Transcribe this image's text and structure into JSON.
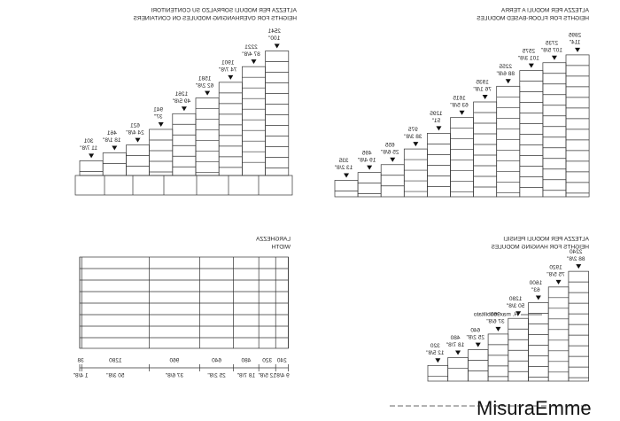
{
  "overhanging": {
    "title": "ALTEZZA PER MODULI SOPRALZO SU CONTENITORI",
    "subtitle": "HEIGHTS FOR OVERHANGING MODULES ON CONTAINERS",
    "modules": [
      {
        "mm": 301,
        "inch": "11 7/8\""
      },
      {
        "mm": 461,
        "inch": "18 1/8\""
      },
      {
        "mm": 621,
        "inch": "24 4/8\""
      },
      {
        "mm": 941,
        "inch": "37\""
      },
      {
        "mm": 1261,
        "inch": "49 5/8\""
      },
      {
        "mm": 1581,
        "inch": "62 2/8\""
      },
      {
        "mm": 1901,
        "inch": "74 7/8\""
      },
      {
        "mm": 2221,
        "inch": "87 4/8\""
      },
      {
        "mm": 2541,
        "inch": "100\""
      }
    ]
  },
  "floor": {
    "title": "ALTEZZA PER MODULI A TERRA",
    "subtitle": "HEIGHTS FOR FLOOR-BASED MODULES",
    "modules": [
      {
        "mm": 335,
        "inch": "13 2/8\""
      },
      {
        "mm": 495,
        "inch": "19 4/8\""
      },
      {
        "mm": 655,
        "inch": "25 6/8\""
      },
      {
        "mm": 975,
        "inch": "38 3/8\""
      },
      {
        "mm": 1295,
        "inch": "51\""
      },
      {
        "mm": 1615,
        "inch": "63 5/8\""
      },
      {
        "mm": 1935,
        "inch": "76 1/8\""
      },
      {
        "mm": 2255,
        "inch": "88 6/8\""
      },
      {
        "mm": 2575,
        "inch": "101 3/8\""
      },
      {
        "mm": 2735,
        "inch": "107 5/8\""
      },
      {
        "mm": 2895,
        "inch": "114\""
      }
    ]
  },
  "width": {
    "title": "LARGHEZZA",
    "subtitle": "WIDTH",
    "modules": [
      {
        "mm": 38,
        "inch": "1 4/8\""
      },
      {
        "mm": 1280,
        "inch": "50 3/8\""
      },
      {
        "mm": 960,
        "inch": "37 6/8\""
      },
      {
        "mm": 640,
        "inch": "25 2/8\""
      },
      {
        "mm": 480,
        "inch": "18 7/8\""
      },
      {
        "mm": 320,
        "inch": "12 5/8\""
      },
      {
        "mm": 240,
        "inch": "9 4/8\""
      }
    ]
  },
  "hanging": {
    "title": "ALTEZZA PER MODULI PENSILI",
    "subtitle": "HEIGHTS FOR HANGING MODULES",
    "note": "H. max mobilitato",
    "modules": [
      {
        "mm": 320,
        "inch": "12 5/8\""
      },
      {
        "mm": 480,
        "inch": "18 7/8\""
      },
      {
        "mm": 640,
        "inch": "25 2/8\""
      },
      {
        "mm": 960,
        "inch": "37 6/8\""
      },
      {
        "mm": 1280,
        "inch": "50 3/8\""
      },
      {
        "mm": 1600,
        "inch": "63\""
      },
      {
        "mm": 1920,
        "inch": "75 5/8\""
      },
      {
        "mm": 2240,
        "inch": "88 2/8\""
      }
    ]
  },
  "logo": "MisuraEmme"
}
